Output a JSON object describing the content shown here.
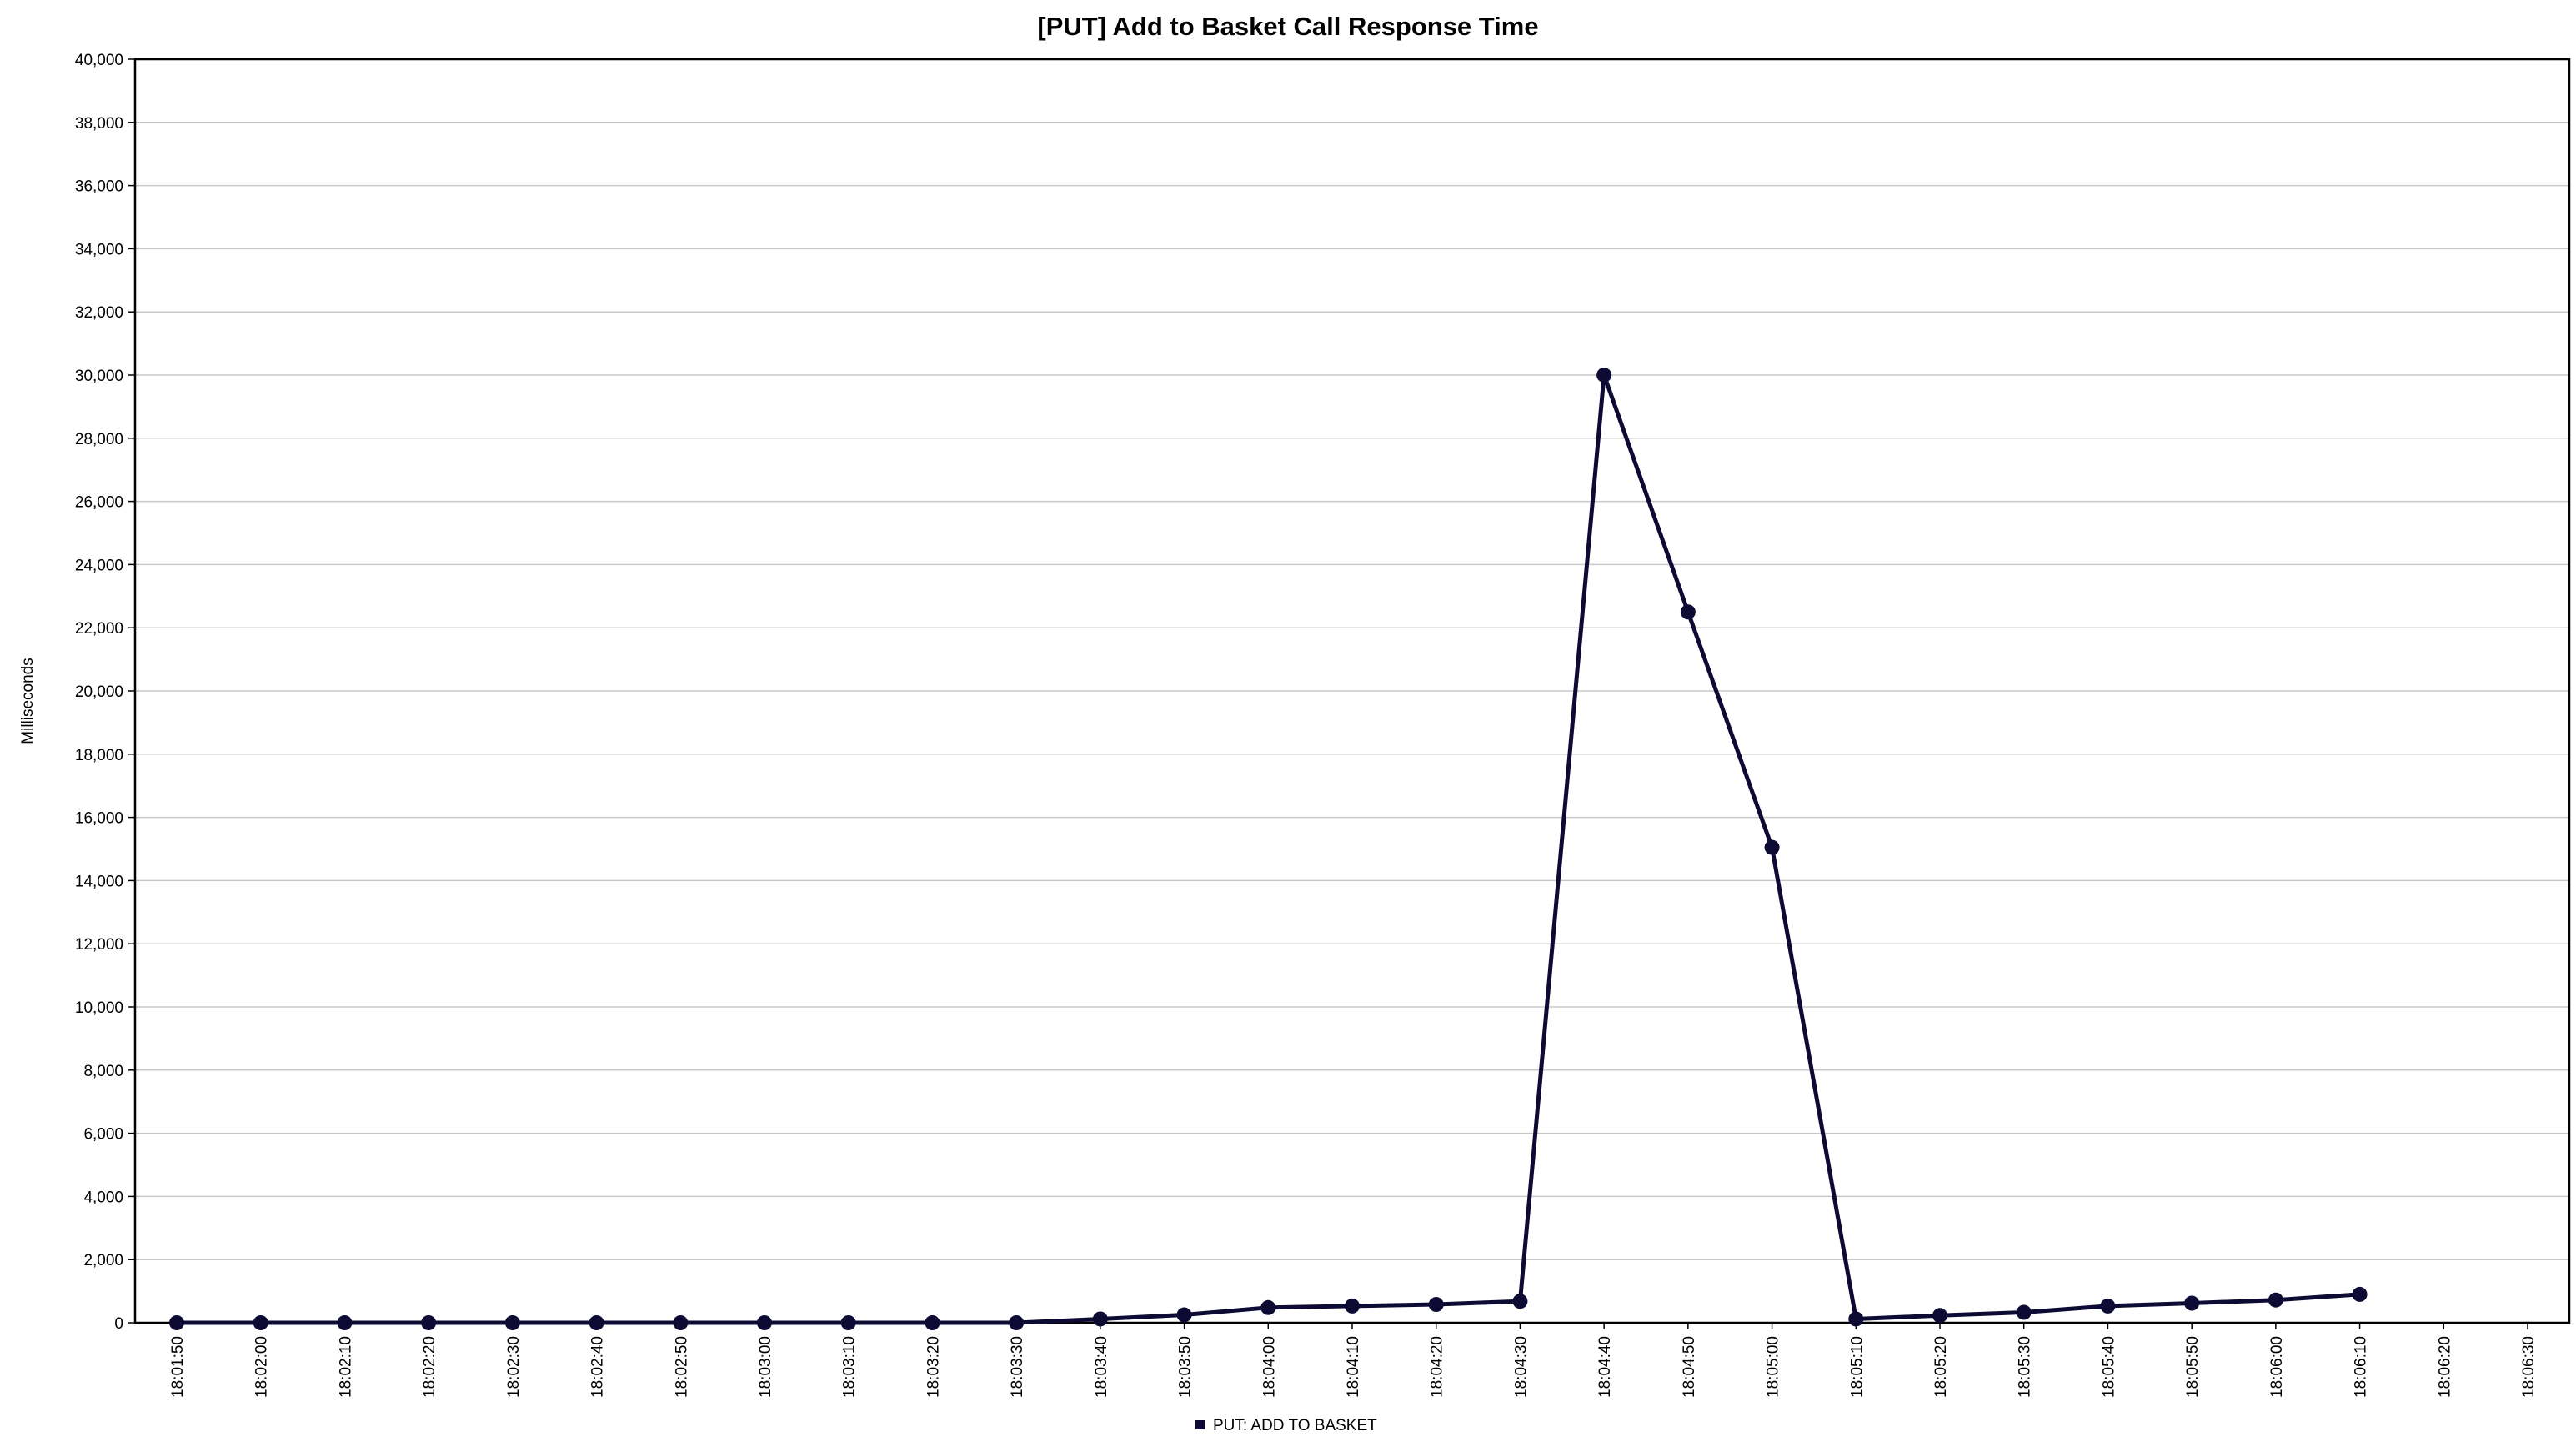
{
  "chart_data": {
    "type": "line",
    "title": "[PUT] Add to Basket Call Response Time",
    "ylabel": "Milliseconds",
    "xlabel": "",
    "ylim": [
      0,
      40000
    ],
    "ytick_step": 2000,
    "grid": true,
    "legend_position": "bottom-center",
    "categories": [
      "18:01:50",
      "18:02:00",
      "18:02:10",
      "18:02:20",
      "18:02:30",
      "18:02:40",
      "18:02:50",
      "18:03:00",
      "18:03:10",
      "18:03:20",
      "18:03:30",
      "18:03:40",
      "18:03:50",
      "18:04:00",
      "18:04:10",
      "18:04:20",
      "18:04:30",
      "18:04:40",
      "18:04:50",
      "18:05:00",
      "18:05:10",
      "18:05:20",
      "18:05:30",
      "18:05:40",
      "18:05:50",
      "18:06:00",
      "18:06:10",
      "18:06:20",
      "18:06:30"
    ],
    "series": [
      {
        "name": "PUT: ADD TO BASKET",
        "color": "#0d0a33",
        "values": [
          0,
          0,
          0,
          0,
          0,
          0,
          0,
          0,
          0,
          0,
          0,
          120,
          250,
          480,
          530,
          580,
          680,
          30000,
          22500,
          15050,
          120,
          230,
          330,
          530,
          620,
          720,
          900,
          null,
          null
        ]
      }
    ]
  }
}
